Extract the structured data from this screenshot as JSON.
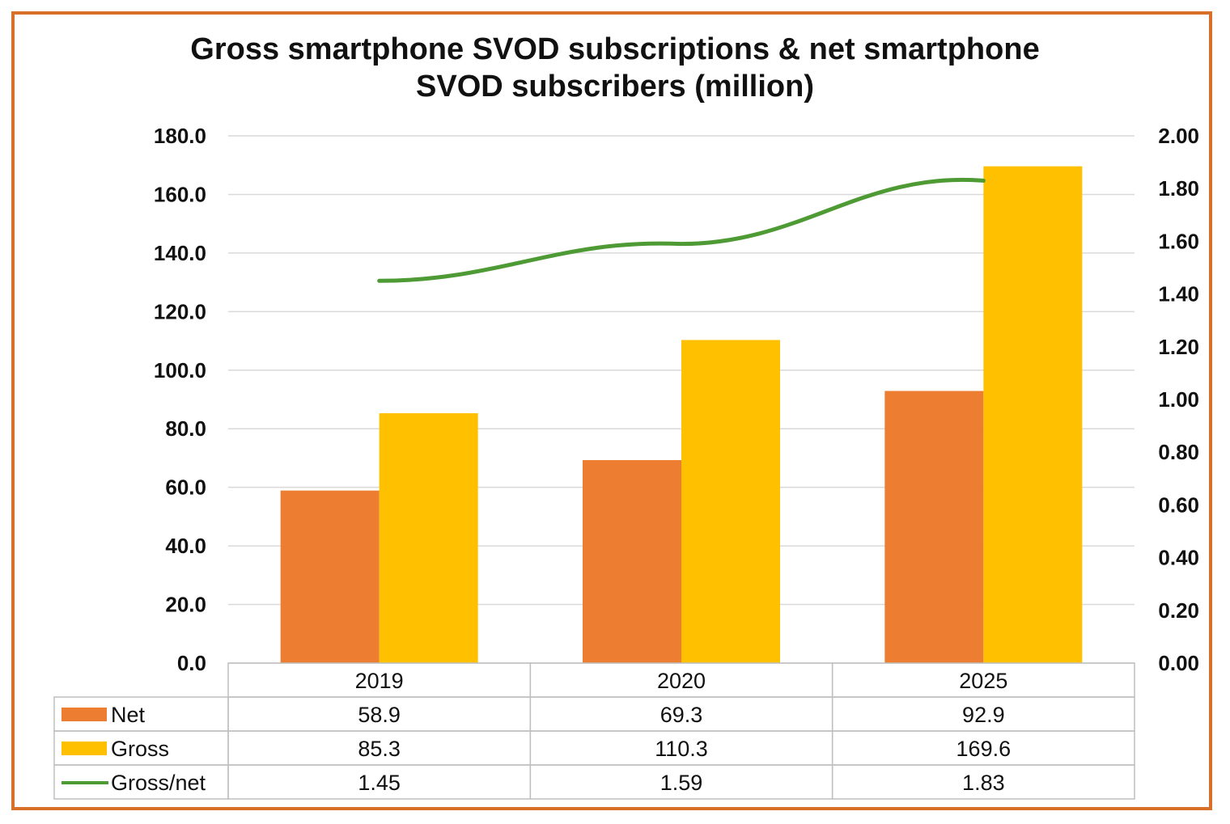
{
  "chart_data": {
    "type": "bar",
    "title_line1": "Gross smartphone SVOD subscriptions & net smartphone",
    "title_line2": "SVOD subscribers (million)",
    "categories": [
      "2019",
      "2020",
      "2025"
    ],
    "series": [
      {
        "name": "Net",
        "type": "bar",
        "axis": "left",
        "values": [
          58.9,
          69.3,
          92.9
        ],
        "color": "#ed7d31",
        "value_labels": [
          "58.9",
          "69.3",
          "92.9"
        ]
      },
      {
        "name": "Gross",
        "type": "bar",
        "axis": "left",
        "values": [
          85.3,
          110.3,
          169.6
        ],
        "color": "#ffc000",
        "value_labels": [
          "85.3",
          "110.3",
          "169.6"
        ]
      },
      {
        "name": "Gross/net",
        "type": "line",
        "axis": "right",
        "values": [
          1.45,
          1.59,
          1.83
        ],
        "color": "#4e9a34",
        "value_labels": [
          "1.45",
          "1.59",
          "1.83"
        ]
      }
    ],
    "y_left": {
      "min": 0,
      "max": 180,
      "tick_labels": [
        "0.0",
        "20.0",
        "40.0",
        "60.0",
        "80.0",
        "100.0",
        "120.0",
        "140.0",
        "160.0",
        "180.0"
      ]
    },
    "y_right": {
      "min": 0,
      "max": 2,
      "tick_labels": [
        "0.00",
        "0.20",
        "0.40",
        "0.60",
        "0.80",
        "1.00",
        "1.20",
        "1.40",
        "1.60",
        "1.80",
        "2.00"
      ]
    },
    "grid": true,
    "data_table": true,
    "frame_color": "#d9702a",
    "grid_color": "#d9d9d9"
  }
}
